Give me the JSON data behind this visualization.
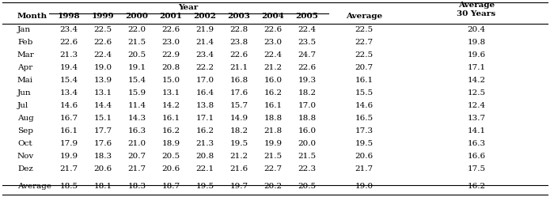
{
  "months": [
    "Jan",
    "Feb",
    "Mar",
    "Apr",
    "Mai",
    "Jun",
    "Jul",
    "Aug",
    "Sep",
    "Oct",
    "Nov",
    "Dez"
  ],
  "data": {
    "Jan": [
      23.4,
      22.5,
      22.0,
      22.6,
      21.9,
      22.8,
      22.6,
      22.4,
      22.5,
      20.4
    ],
    "Feb": [
      22.6,
      22.6,
      21.5,
      23.0,
      21.4,
      23.8,
      23.0,
      23.5,
      22.7,
      19.8
    ],
    "Mar": [
      21.3,
      22.4,
      20.5,
      22.9,
      23.4,
      22.6,
      22.4,
      24.7,
      22.5,
      19.6
    ],
    "Apr": [
      19.4,
      19.0,
      19.1,
      20.8,
      22.2,
      21.1,
      21.2,
      22.6,
      20.7,
      17.1
    ],
    "Mai": [
      15.4,
      13.9,
      15.4,
      15.0,
      17.0,
      16.8,
      16.0,
      19.3,
      16.1,
      14.2
    ],
    "Jun": [
      13.4,
      13.1,
      15.9,
      13.1,
      16.4,
      17.6,
      16.2,
      18.2,
      15.5,
      12.5
    ],
    "Jul": [
      14.6,
      14.4,
      11.4,
      14.2,
      13.8,
      15.7,
      16.1,
      17.0,
      14.6,
      12.4
    ],
    "Aug": [
      16.7,
      15.1,
      14.3,
      16.1,
      17.1,
      14.9,
      18.8,
      18.8,
      16.5,
      13.7
    ],
    "Sep": [
      16.1,
      17.7,
      16.3,
      16.2,
      16.2,
      18.2,
      21.8,
      16.0,
      17.3,
      14.1
    ],
    "Oct": [
      17.9,
      17.6,
      21.0,
      18.9,
      21.3,
      19.5,
      19.9,
      20.0,
      19.5,
      16.3
    ],
    "Nov": [
      19.9,
      18.3,
      20.7,
      20.5,
      20.8,
      21.2,
      21.5,
      21.5,
      20.6,
      16.6
    ],
    "Dez": [
      21.7,
      20.6,
      21.7,
      20.6,
      22.1,
      21.6,
      22.7,
      22.3,
      21.7,
      17.5
    ],
    "Average": [
      18.5,
      18.1,
      18.3,
      18.7,
      19.5,
      19.7,
      20.2,
      20.5,
      19.0,
      16.2
    ]
  },
  "years": [
    "1998",
    "1999",
    "2000",
    "2001",
    "2002",
    "2003",
    "2004",
    "2005"
  ],
  "fig_width": 6.95,
  "fig_height": 2.73,
  "dpi": 100,
  "font_family": "DejaVu Serif",
  "fontsize": 7.5,
  "bold_fontsize": 7.5
}
